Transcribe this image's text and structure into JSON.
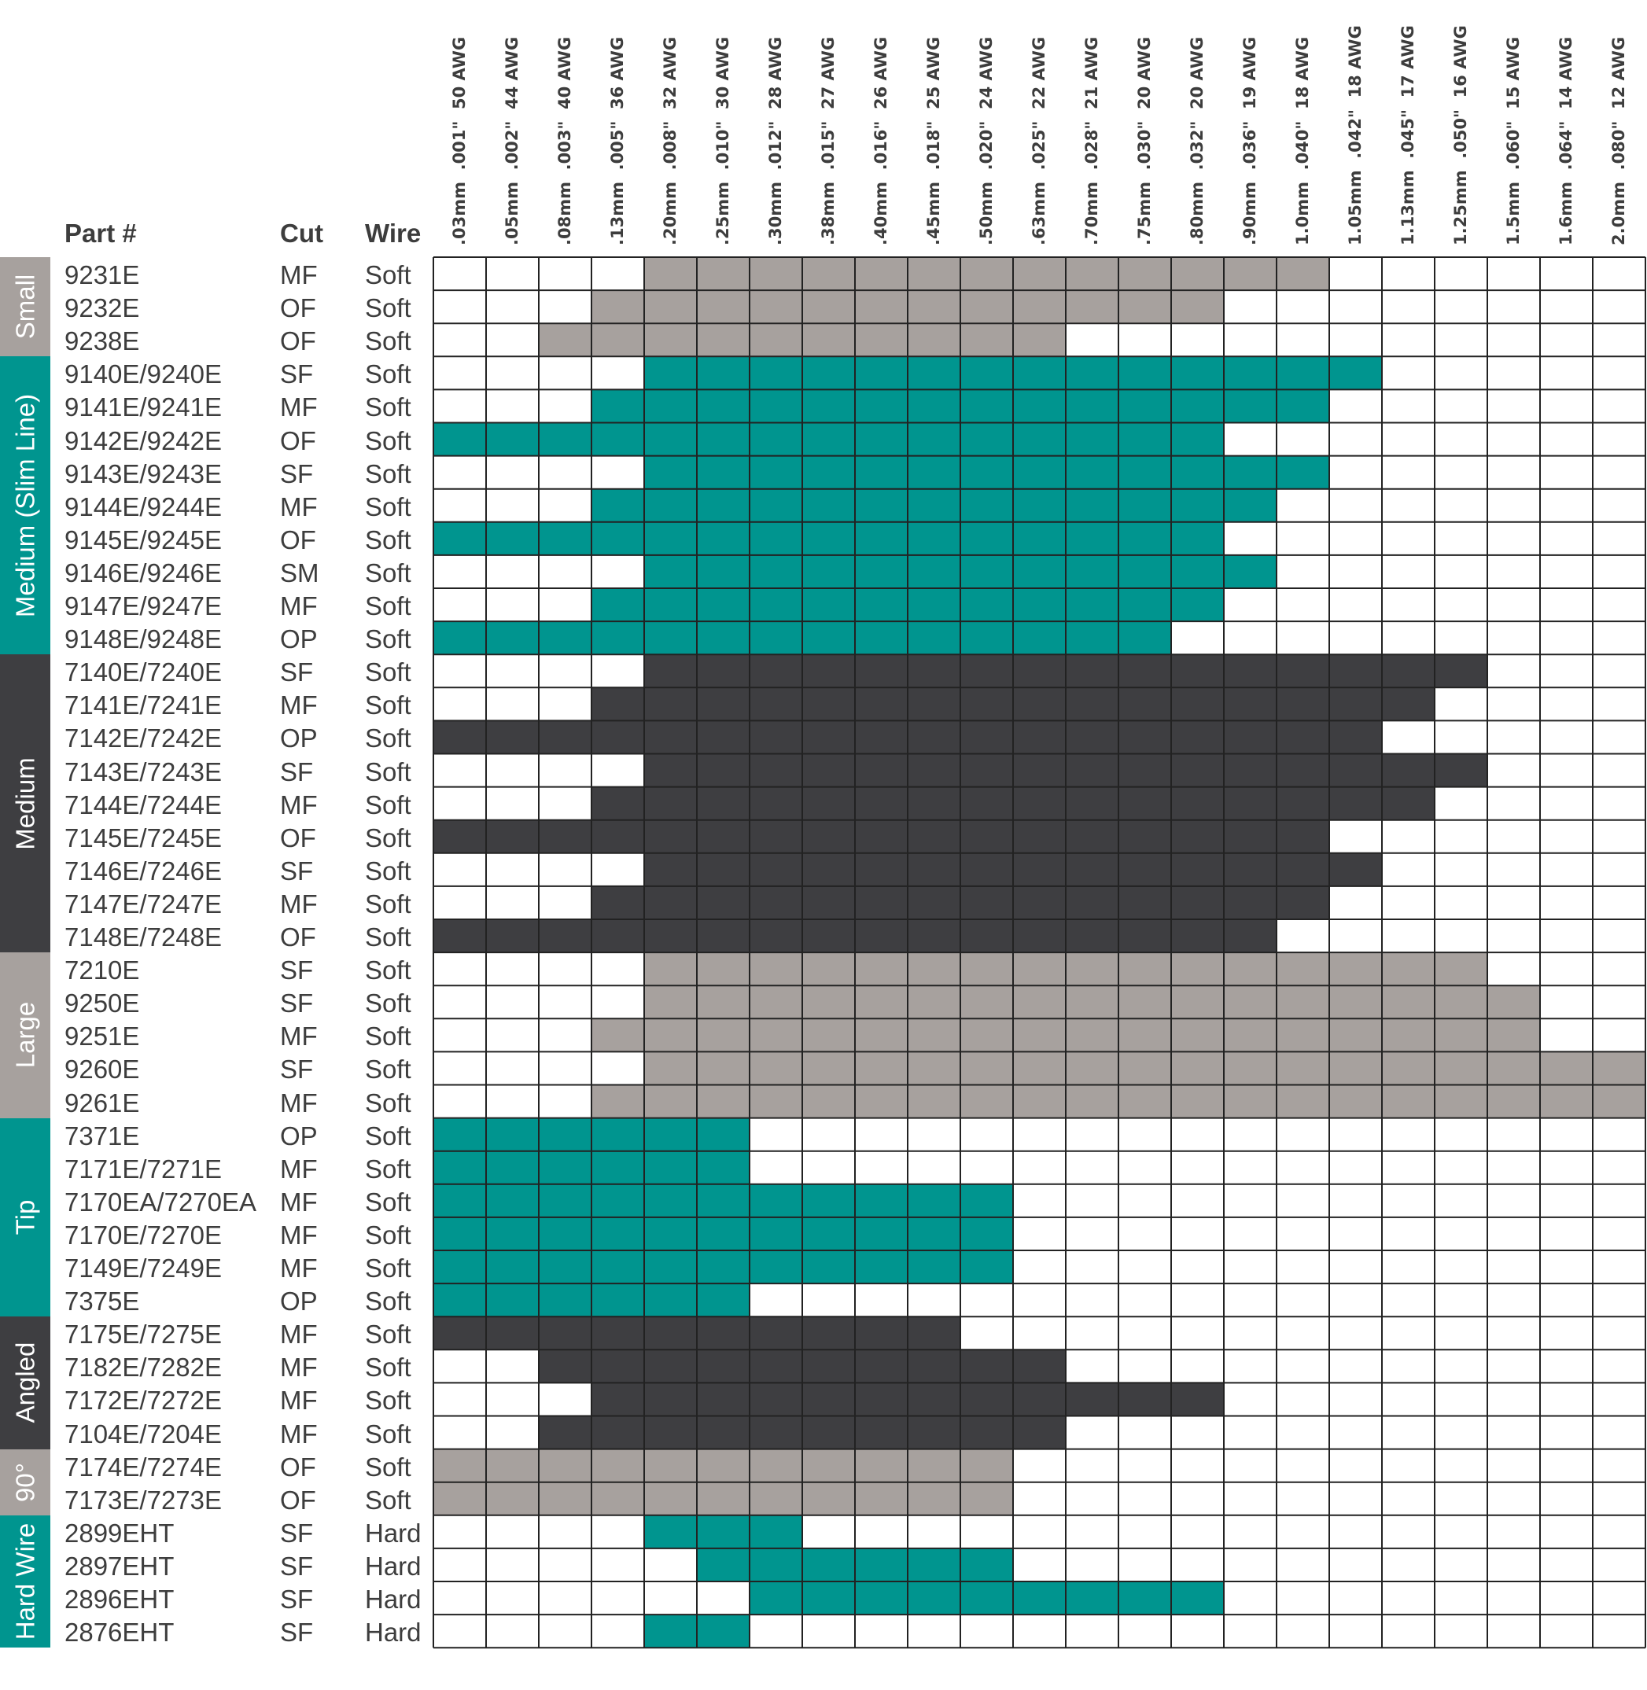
{
  "colors": {
    "teal": "#00958f",
    "charcoal": "#3e3e41",
    "gray": "#a7a19e",
    "blank": "#ffffff",
    "grid": "#222222"
  },
  "headers": {
    "part": "Part #",
    "cut": "Cut",
    "wire": "Wire"
  },
  "chart_data": {
    "type": "table",
    "columns": [
      {
        "mm": ".03mm",
        "inch": ".001\"",
        "awg": "50 AWG"
      },
      {
        "mm": ".05mm",
        "inch": ".002\"",
        "awg": "44 AWG"
      },
      {
        "mm": ".08mm",
        "inch": ".003\"",
        "awg": "40 AWG"
      },
      {
        "mm": ".13mm",
        "inch": ".005\"",
        "awg": "36 AWG"
      },
      {
        "mm": ".20mm",
        "inch": ".008\"",
        "awg": "32 AWG"
      },
      {
        "mm": ".25mm",
        "inch": ".010\"",
        "awg": "30 AWG"
      },
      {
        "mm": ".30mm",
        "inch": ".012\"",
        "awg": "28 AWG"
      },
      {
        "mm": ".38mm",
        "inch": ".015\"",
        "awg": "27 AWG"
      },
      {
        "mm": ".40mm",
        "inch": ".016\"",
        "awg": "26 AWG"
      },
      {
        "mm": ".45mm",
        "inch": ".018\"",
        "awg": "25 AWG"
      },
      {
        "mm": ".50mm",
        "inch": ".020\"",
        "awg": "24 AWG"
      },
      {
        "mm": ".63mm",
        "inch": ".025\"",
        "awg": "22 AWG"
      },
      {
        "mm": ".70mm",
        "inch": ".028\"",
        "awg": "21 AWG"
      },
      {
        "mm": ".75mm",
        "inch": ".030\"",
        "awg": "20 AWG"
      },
      {
        "mm": ".80mm",
        "inch": ".032\"",
        "awg": "20 AWG"
      },
      {
        "mm": ".90mm",
        "inch": ".036\"",
        "awg": "19 AWG"
      },
      {
        "mm": "1.0mm",
        "inch": ".040\"",
        "awg": "18 AWG"
      },
      {
        "mm": "1.05mm",
        "inch": ".042\"",
        "awg": "18 AWG"
      },
      {
        "mm": "1.13mm",
        "inch": ".045\"",
        "awg": "17 AWG"
      },
      {
        "mm": "1.25mm",
        "inch": ".050\"",
        "awg": "16 AWG"
      },
      {
        "mm": "1.5mm",
        "inch": ".060\"",
        "awg": "15 AWG"
      },
      {
        "mm": "1.6mm",
        "inch": ".064\"",
        "awg": "14 AWG"
      },
      {
        "mm": "2.0mm",
        "inch": ".080\"",
        "awg": "12 AWG"
      }
    ],
    "groups": [
      {
        "name": "Small",
        "color": "#a7a19e",
        "rows": [
          {
            "part": "9231E",
            "cut": "MF",
            "wire": "Soft",
            "range": [
              4,
              16
            ]
          },
          {
            "part": "9232E",
            "cut": "OF",
            "wire": "Soft",
            "range": [
              3,
              14
            ]
          },
          {
            "part": "9238E",
            "cut": "OF",
            "wire": "Soft",
            "range": [
              2,
              11
            ]
          }
        ]
      },
      {
        "name": "Medium (Slim Line)",
        "color": "#00958f",
        "rows": [
          {
            "part": "9140E/9240E",
            "cut": "SF",
            "wire": "Soft",
            "range": [
              4,
              17
            ]
          },
          {
            "part": "9141E/9241E",
            "cut": "MF",
            "wire": "Soft",
            "range": [
              3,
              16
            ]
          },
          {
            "part": "9142E/9242E",
            "cut": "OF",
            "wire": "Soft",
            "range": [
              0,
              14
            ]
          },
          {
            "part": "9143E/9243E",
            "cut": "SF",
            "wire": "Soft",
            "range": [
              4,
              16
            ]
          },
          {
            "part": "9144E/9244E",
            "cut": "MF",
            "wire": "Soft",
            "range": [
              3,
              15
            ]
          },
          {
            "part": "9145E/9245E",
            "cut": "OF",
            "wire": "Soft",
            "range": [
              0,
              14
            ]
          },
          {
            "part": "9146E/9246E",
            "cut": "SM",
            "wire": "Soft",
            "range": [
              4,
              15
            ]
          },
          {
            "part": "9147E/9247E",
            "cut": "MF",
            "wire": "Soft",
            "range": [
              3,
              14
            ]
          },
          {
            "part": "9148E/9248E",
            "cut": "OP",
            "wire": "Soft",
            "range": [
              0,
              13
            ]
          }
        ]
      },
      {
        "name": "Medium",
        "color": "#3e3e41",
        "rows": [
          {
            "part": "7140E/7240E",
            "cut": "SF",
            "wire": "Soft",
            "range": [
              4,
              19
            ]
          },
          {
            "part": "7141E/7241E",
            "cut": "MF",
            "wire": "Soft",
            "range": [
              3,
              18
            ]
          },
          {
            "part": "7142E/7242E",
            "cut": "OP",
            "wire": "Soft",
            "range": [
              0,
              17
            ]
          },
          {
            "part": "7143E/7243E",
            "cut": "SF",
            "wire": "Soft",
            "range": [
              4,
              19
            ]
          },
          {
            "part": "7144E/7244E",
            "cut": "MF",
            "wire": "Soft",
            "range": [
              3,
              18
            ]
          },
          {
            "part": "7145E/7245E",
            "cut": "OF",
            "wire": "Soft",
            "range": [
              0,
              16
            ]
          },
          {
            "part": "7146E/7246E",
            "cut": "SF",
            "wire": "Soft",
            "range": [
              4,
              17
            ]
          },
          {
            "part": "7147E/7247E",
            "cut": "MF",
            "wire": "Soft",
            "range": [
              3,
              16
            ]
          },
          {
            "part": "7148E/7248E",
            "cut": "OF",
            "wire": "Soft",
            "range": [
              0,
              15
            ]
          }
        ]
      },
      {
        "name": "Large",
        "color": "#a7a19e",
        "rows": [
          {
            "part": "7210E",
            "cut": "SF",
            "wire": "Soft",
            "range": [
              4,
              19
            ]
          },
          {
            "part": "9250E",
            "cut": "SF",
            "wire": "Soft",
            "range": [
              4,
              20
            ]
          },
          {
            "part": "9251E",
            "cut": "MF",
            "wire": "Soft",
            "range": [
              3,
              20
            ]
          },
          {
            "part": "9260E",
            "cut": "SF",
            "wire": "Soft",
            "range": [
              4,
              22
            ]
          },
          {
            "part": "9261E",
            "cut": "MF",
            "wire": "Soft",
            "range": [
              3,
              22
            ]
          }
        ]
      },
      {
        "name": "Tip",
        "color": "#00958f",
        "rows": [
          {
            "part": "7371E",
            "cut": "OP",
            "wire": "Soft",
            "range": [
              0,
              5
            ]
          },
          {
            "part": "7171E/7271E",
            "cut": "MF",
            "wire": "Soft",
            "range": [
              0,
              5
            ]
          },
          {
            "part": "7170EA/7270EA",
            "cut": "MF",
            "wire": "Soft",
            "range": [
              0,
              10
            ]
          },
          {
            "part": "7170E/7270E",
            "cut": "MF",
            "wire": "Soft",
            "range": [
              0,
              10
            ]
          },
          {
            "part": "7149E/7249E",
            "cut": "MF",
            "wire": "Soft",
            "range": [
              0,
              10
            ]
          },
          {
            "part": "7375E",
            "cut": "OP",
            "wire": "Soft",
            "range": [
              0,
              5
            ]
          }
        ]
      },
      {
        "name": "Angled",
        "color": "#3e3e41",
        "rows": [
          {
            "part": "7175E/7275E",
            "cut": "MF",
            "wire": "Soft",
            "range": [
              0,
              9
            ]
          },
          {
            "part": "7182E/7282E",
            "cut": "MF",
            "wire": "Soft",
            "range": [
              2,
              11
            ]
          },
          {
            "part": "7172E/7272E",
            "cut": "MF",
            "wire": "Soft",
            "range": [
              3,
              14
            ]
          },
          {
            "part": "7104E/7204E",
            "cut": "MF",
            "wire": "Soft",
            "range": [
              2,
              11
            ]
          }
        ]
      },
      {
        "name": "90°",
        "color": "#a7a19e",
        "rows": [
          {
            "part": "7174E/7274E",
            "cut": "OF",
            "wire": "Soft",
            "range": [
              0,
              10
            ]
          },
          {
            "part": "7173E/7273E",
            "cut": "OF",
            "wire": "Soft",
            "range": [
              0,
              10
            ]
          }
        ]
      },
      {
        "name": "Hard Wire",
        "color": "#00958f",
        "rows": [
          {
            "part": "2899EHT",
            "cut": "SF",
            "wire": "Hard",
            "range": [
              4,
              6
            ]
          },
          {
            "part": "2897EHT",
            "cut": "SF",
            "wire": "Hard",
            "range": [
              5,
              10
            ]
          },
          {
            "part": "2896EHT",
            "cut": "SF",
            "wire": "Hard",
            "range": [
              6,
              14
            ]
          },
          {
            "part": "2876EHT",
            "cut": "SF",
            "wire": "Hard",
            "range": [
              4,
              5
            ]
          }
        ]
      }
    ]
  }
}
